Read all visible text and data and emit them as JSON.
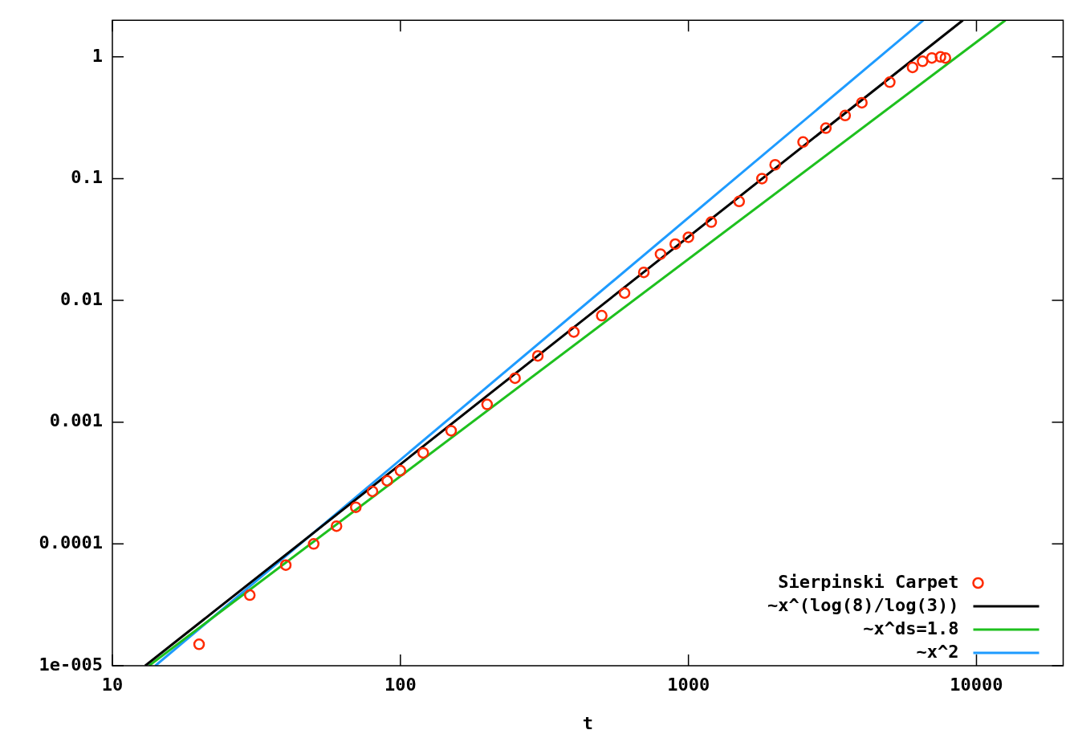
{
  "chart_data": {
    "type": "scatter",
    "xlabel": "t",
    "log": "xy",
    "xlim": [
      10,
      20000
    ],
    "ylim": [
      1e-05,
      2
    ],
    "xticks": [
      10,
      100,
      1000,
      10000
    ],
    "yticks": [
      {
        "value": 1e-05,
        "label": "1e-005"
      },
      {
        "value": 0.0001,
        "label": "0.0001"
      },
      {
        "value": 0.001,
        "label": "0.001"
      },
      {
        "value": 0.01,
        "label": "0.01"
      },
      {
        "value": 0.1,
        "label": "0.1"
      },
      1
    ],
    "legend": "bottom right",
    "grid": false,
    "series": [
      {
        "name": "Sierpinski Carpet",
        "marker": "circle",
        "color": "#ff2a00",
        "x": [
          20,
          30,
          40,
          50,
          60,
          70,
          80,
          90,
          100,
          120,
          150,
          200,
          250,
          300,
          400,
          500,
          600,
          700,
          800,
          900,
          1000,
          1200,
          1500,
          1800,
          2000,
          2500,
          3000,
          3500,
          4000,
          5000,
          6000,
          6500,
          7000,
          7500,
          7800
        ],
        "values": [
          1.5e-05,
          3.8e-05,
          6.7e-05,
          0.0001,
          0.00014,
          0.0002,
          0.00027,
          0.00033,
          0.0004,
          0.00056,
          0.00085,
          0.0014,
          0.0023,
          0.0035,
          0.0055,
          0.0075,
          0.0115,
          0.017,
          0.024,
          0.029,
          0.033,
          0.044,
          0.065,
          0.1,
          0.13,
          0.2,
          0.26,
          0.33,
          0.42,
          0.62,
          0.82,
          0.92,
          0.98,
          1.0,
          0.98
        ]
      },
      {
        "name": "~x^(log(8)/log(3))",
        "type": "line",
        "color": "#000000",
        "x": [
          13,
          8970
        ],
        "values": [
          1e-05,
          2
        ]
      },
      {
        "name": "~x^ds=1.8",
        "type": "line",
        "color": "#1ec01e",
        "x": [
          13.4,
          12600
        ],
        "values": [
          1e-05,
          2
        ]
      },
      {
        "name": "~x^2",
        "type": "line",
        "color": "#1e9bff",
        "x": [
          14.1,
          6540
        ],
        "values": [
          1e-05,
          2
        ]
      }
    ]
  }
}
